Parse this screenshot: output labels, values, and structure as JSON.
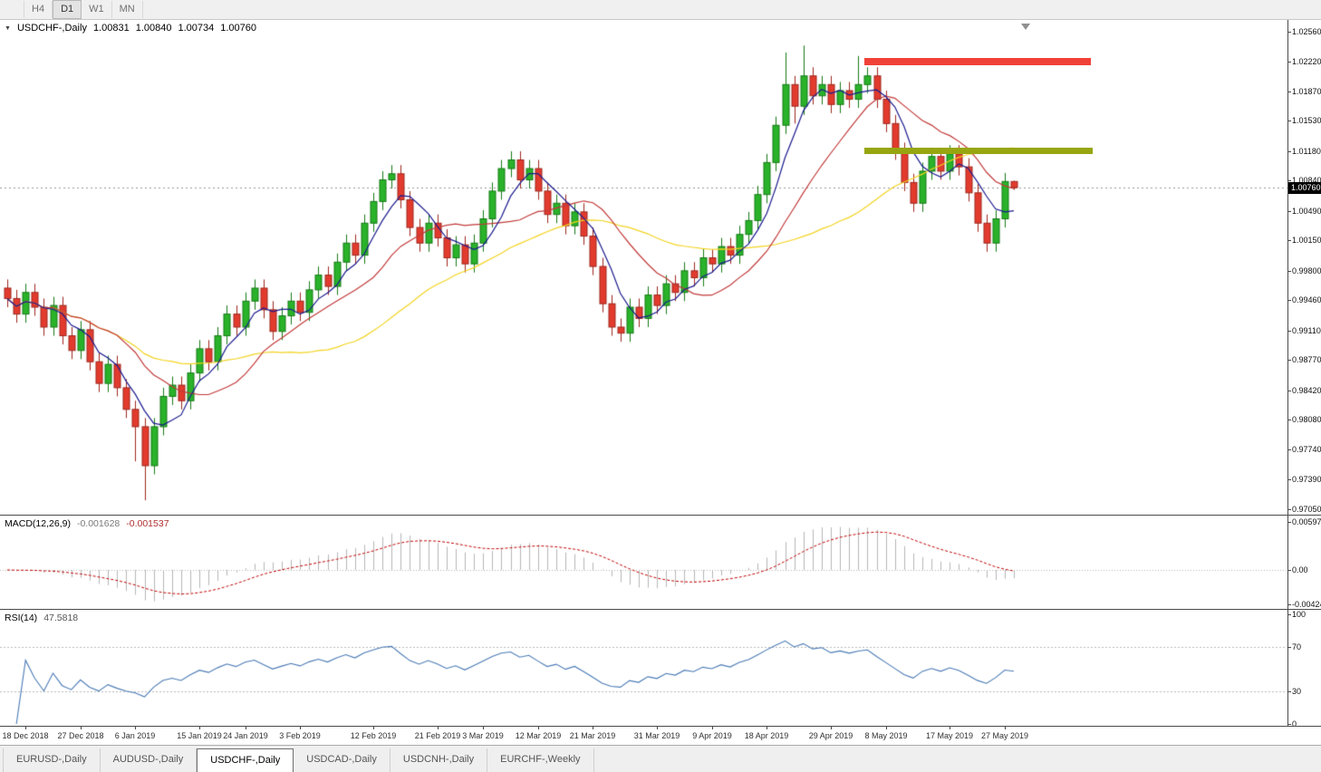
{
  "toolbar": {
    "timeframes": [
      {
        "label": "H4",
        "active": false
      },
      {
        "label": "D1",
        "active": true
      },
      {
        "label": "W1",
        "active": false
      },
      {
        "label": "MN",
        "active": false
      }
    ]
  },
  "icons": {
    "collapse_marker": "▼"
  },
  "chart": {
    "symbol_timeframe": "USDCHF-,Daily",
    "open": "1.00831",
    "high": "1.00840",
    "low": "1.00734",
    "close": "1.00760",
    "current_price": "1.00760"
  },
  "price_axis": {
    "labels": [
      "1.02560",
      "1.02220",
      "1.01870",
      "1.01530",
      "1.01180",
      "1.00840",
      "1.00490",
      "1.00150",
      "0.99800",
      "0.99460",
      "0.99110",
      "0.98770",
      "0.98420",
      "0.98080",
      "0.97740",
      "0.97390",
      "0.97050"
    ]
  },
  "chart_data": {
    "type": "candlestick",
    "symbol": "USDCHF-",
    "timeframe": "Daily",
    "first_open": 0.996,
    "closes": [
      0.9948,
      0.993,
      0.9955,
      0.9938,
      0.9915,
      0.994,
      0.9905,
      0.9888,
      0.9912,
      0.9875,
      0.985,
      0.9872,
      0.9845,
      0.982,
      0.98,
      0.9755,
      0.98,
      0.9835,
      0.9848,
      0.983,
      0.9862,
      0.989,
      0.9875,
      0.9905,
      0.993,
      0.9915,
      0.9945,
      0.996,
      0.9935,
      0.991,
      0.9928,
      0.9945,
      0.9932,
      0.9958,
      0.9975,
      0.9962,
      0.999,
      1.0012,
      0.9998,
      1.0035,
      1.006,
      1.0085,
      1.0092,
      1.0062,
      1.003,
      1.0012,
      1.0035,
      1.0018,
      0.9995,
      1.001,
      0.9988,
      1.0012,
      1.004,
      1.0072,
      1.0098,
      1.0108,
      1.0085,
      1.0098,
      1.0072,
      1.0045,
      1.0058,
      1.0032,
      1.0048,
      1.002,
      0.9985,
      0.9942,
      0.9915,
      0.9908,
      0.9938,
      0.9925,
      0.9952,
      0.994,
      0.9965,
      0.9955,
      0.998,
      0.9972,
      0.9995,
      0.9988,
      1.0008,
      0.9998,
      1.0022,
      1.0038,
      1.0068,
      1.0105,
      1.0148,
      1.0195,
      1.017,
      1.0205,
      1.0182,
      1.0195,
      1.0172,
      1.0188,
      1.0178,
      1.0195,
      1.0205,
      1.0178,
      1.015,
      1.0118,
      1.0082,
      1.0058,
      1.0095,
      1.0112,
      1.0095,
      1.0115,
      1.01,
      1.007,
      1.0035,
      1.0012,
      1.004,
      1.00831,
      1.0076
    ],
    "highs": [
      0.997,
      0.9958,
      0.9965,
      0.9965,
      0.9948,
      0.995,
      0.995,
      0.9915,
      0.9922,
      0.9922,
      0.9885,
      0.9882,
      0.9882,
      0.9855,
      0.983,
      0.981,
      0.981,
      0.9845,
      0.9858,
      0.9858,
      0.9872,
      0.99,
      0.99,
      0.9915,
      0.994,
      0.994,
      0.9955,
      0.997,
      0.997,
      0.9945,
      0.9938,
      0.9955,
      0.9955,
      0.9968,
      0.9985,
      0.9985,
      1.0,
      1.0022,
      1.0022,
      1.0045,
      1.007,
      1.0095,
      1.0102,
      1.0102,
      1.0072,
      1.004,
      1.0045,
      1.0045,
      1.0028,
      1.002,
      1.002,
      1.0022,
      1.005,
      1.0082,
      1.0108,
      1.0118,
      1.0118,
      1.0108,
      1.0108,
      1.0082,
      1.0068,
      1.0068,
      1.0058,
      1.0058,
      1.003,
      0.9995,
      0.9952,
      0.9925,
      0.9948,
      0.9948,
      0.9962,
      0.9962,
      0.9975,
      0.9975,
      0.999,
      0.999,
      1.0005,
      1.0005,
      1.0018,
      1.0018,
      1.0032,
      1.0048,
      1.0078,
      1.0115,
      1.0158,
      1.0232,
      1.0205,
      1.024,
      1.0215,
      1.0205,
      1.0205,
      1.0198,
      1.0198,
      1.0228,
      1.0215,
      1.0215,
      1.0188,
      1.016,
      1.0128,
      1.0092,
      1.0105,
      1.0122,
      1.0122,
      1.0125,
      1.0125,
      1.011,
      1.008,
      1.0045,
      1.005,
      1.0093,
      1.0084
    ],
    "lows": [
      0.9938,
      0.992,
      0.992,
      0.9928,
      0.9905,
      0.9905,
      0.9895,
      0.9878,
      0.9878,
      0.9865,
      0.984,
      0.984,
      0.9835,
      0.981,
      0.976,
      0.9715,
      0.9745,
      0.979,
      0.9825,
      0.982,
      0.982,
      0.9852,
      0.9865,
      0.9865,
      0.9895,
      0.9905,
      0.9905,
      0.9935,
      0.9925,
      0.99,
      0.99,
      0.9918,
      0.9922,
      0.9922,
      0.9948,
      0.9952,
      0.9952,
      0.998,
      0.9988,
      0.9988,
      1.0025,
      1.005,
      1.0075,
      1.0052,
      1.002,
      1.0002,
      1.0002,
      1.0008,
      0.9985,
      0.9985,
      0.9978,
      0.9978,
      1.0002,
      1.003,
      1.0062,
      1.0088,
      1.0075,
      1.0075,
      1.0062,
      1.0035,
      1.0035,
      1.0022,
      1.0022,
      1.001,
      0.9975,
      0.9932,
      0.9905,
      0.9898,
      0.9898,
      0.9915,
      0.9915,
      0.993,
      0.993,
      0.9945,
      0.9945,
      0.9962,
      0.9962,
      0.9978,
      0.9978,
      0.9988,
      0.9988,
      1.0012,
      1.0028,
      1.0058,
      1.0095,
      1.0138,
      1.015,
      1.016,
      1.0172,
      1.0172,
      1.0162,
      1.0162,
      1.0168,
      1.0168,
      1.0185,
      1.0168,
      1.014,
      1.0108,
      1.0072,
      1.0048,
      1.0048,
      1.0085,
      1.0085,
      1.0085,
      1.009,
      1.006,
      1.0025,
      1.0002,
      1.0002,
      1.003,
      1.00734
    ],
    "x_tick_labels": [
      "18 Dec 2018",
      "27 Dec 2018",
      "6 Jan 2019",
      "15 Jan 2019",
      "24 Jan 2019",
      "3 Feb 2019",
      "12 Feb 2019",
      "21 Feb 2019",
      "3 Mar 2019",
      "12 Mar 2019",
      "21 Mar 2019",
      "31 Mar 2019",
      "9 Apr 2019",
      "18 Apr 2019",
      "29 Apr 2019",
      "8 May 2019",
      "17 May 2019",
      "27 May 2019"
    ],
    "x_tick_indices": [
      2,
      8,
      14,
      21,
      26,
      32,
      40,
      47,
      52,
      58,
      64,
      71,
      77,
      83,
      90,
      96,
      103,
      109
    ],
    "moving_averages": [
      {
        "period": 5,
        "color": "#1b1b8f"
      },
      {
        "period": 13,
        "color": "#c23a3a"
      },
      {
        "period": 30,
        "color": "#f3d321"
      }
    ],
    "levels": [
      {
        "name": "resistance-level",
        "price": 1.0222,
        "from_index": 94,
        "to_index": 118.7,
        "thickness": 8,
        "color": "#f04138"
      },
      {
        "name": "support-level",
        "price": 1.0118,
        "from_index": 94,
        "to_index": 118.9,
        "thickness": 7,
        "color": "#97a610"
      }
    ],
    "colors": {
      "candle_up": "#2ab22a",
      "candle_up_border": "#157a15",
      "candle_down": "#e23b2e",
      "candle_down_border": "#9e261c",
      "current_price_line": "#999999"
    },
    "macd": {
      "label": "MACD(12,26,9)",
      "value_main": "-0.001628",
      "value_signal": "-0.001537",
      "fast": 12,
      "slow": 26,
      "signal": 9,
      "axis_labels": [
        "0.00597",
        "0.00",
        "-0.00424"
      ],
      "hist_color": "#b6b6b6",
      "signal_color": "#c00000"
    },
    "rsi": {
      "label": "RSI(14)",
      "value": "47.5818",
      "period": 14,
      "axis_labels": [
        "100",
        "70",
        "30",
        "0"
      ],
      "levels": [
        70,
        30
      ],
      "line_color": "#4a7ab5"
    }
  },
  "tabs": [
    {
      "label": "EURUSD-,Daily",
      "active": false
    },
    {
      "label": "AUDUSD-,Daily",
      "active": false
    },
    {
      "label": "USDCHF-,Daily",
      "active": true
    },
    {
      "label": "USDCAD-,Daily",
      "active": false
    },
    {
      "label": "USDCNH-,Daily",
      "active": false
    },
    {
      "label": "EURCHF-,Weekly",
      "active": false
    }
  ]
}
